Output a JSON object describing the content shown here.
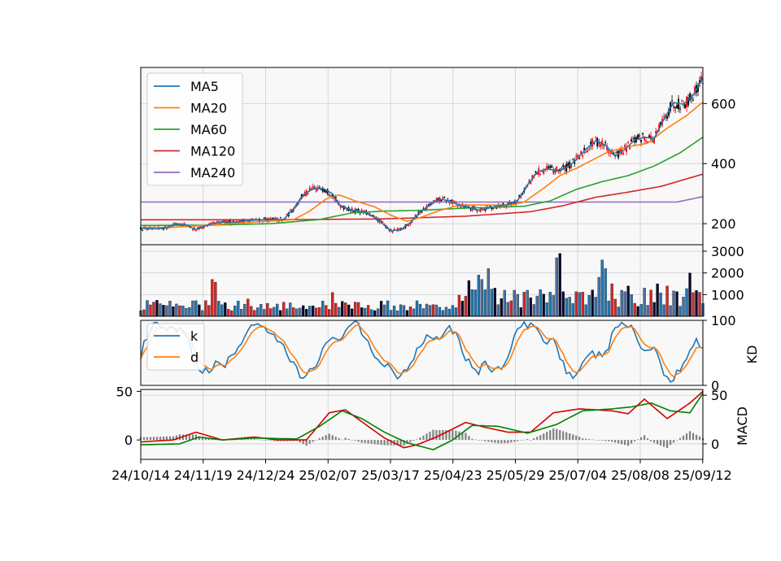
{
  "chart_data": [
    {
      "type": "line",
      "panel": "price",
      "x_dates": [
        "24/10/14",
        "24/11/19",
        "24/12/24",
        "25/02/07",
        "25/03/17",
        "25/04/23",
        "25/05/29",
        "25/07/04",
        "25/08/08",
        "25/09/12"
      ],
      "xlabel": "",
      "ylabel": "",
      "yticks": [
        200,
        400,
        600
      ],
      "ylim": [
        130,
        720
      ],
      "grid": true,
      "legend": "top-left",
      "series": [
        {
          "name": "MA5",
          "color": "#1f77b4",
          "points": [
            [
              0,
              185
            ],
            [
              10,
              183
            ],
            [
              16,
              188
            ],
            [
              22,
              200
            ],
            [
              28,
              196
            ],
            [
              34,
              180
            ],
            [
              40,
              194
            ],
            [
              46,
              202
            ],
            [
              52,
              206
            ],
            [
              58,
              205
            ],
            [
              64,
              210
            ],
            [
              70,
              212
            ],
            [
              76,
              213
            ],
            [
              82,
              214
            ],
            [
              88,
              214
            ],
            [
              94,
              250
            ],
            [
              100,
              296
            ],
            [
              106,
              316
            ],
            [
              112,
              318
            ],
            [
              118,
              300
            ],
            [
              122,
              262
            ],
            [
              130,
              245
            ],
            [
              138,
              238
            ],
            [
              146,
              214
            ],
            [
              154,
              176
            ],
            [
              160,
              180
            ],
            [
              166,
              204
            ],
            [
              172,
              240
            ],
            [
              178,
              262
            ],
            [
              184,
              282
            ],
            [
              190,
              276
            ],
            [
              196,
              262
            ],
            [
              202,
              254
            ],
            [
              208,
              245
            ],
            [
              214,
              252
            ],
            [
              220,
              260
            ],
            [
              226,
              264
            ],
            [
              232,
              278
            ],
            [
              238,
              328
            ],
            [
              244,
              372
            ],
            [
              250,
              382
            ],
            [
              256,
              378
            ],
            [
              262,
              386
            ],
            [
              268,
              412
            ],
            [
              274,
              448
            ],
            [
              280,
              476
            ],
            [
              286,
              462
            ],
            [
              292,
              424
            ],
            [
              298,
              448
            ],
            [
              304,
              478
            ],
            [
              310,
              488
            ],
            [
              316,
              483
            ],
            [
              322,
              548
            ],
            [
              328,
              603
            ],
            [
              334,
              598
            ],
            [
              340,
              628
            ],
            [
              346,
              685
            ]
          ]
        },
        {
          "name": "MA20",
          "color": "#ff7f0e",
          "points": [
            [
              0,
              186
            ],
            [
              20,
              188
            ],
            [
              40,
              195
            ],
            [
              60,
              202
            ],
            [
              80,
              209
            ],
            [
              94,
              213
            ],
            [
              104,
              242
            ],
            [
              114,
              282
            ],
            [
              122,
              296
            ],
            [
              132,
              276
            ],
            [
              144,
              256
            ],
            [
              154,
              228
            ],
            [
              164,
              208
            ],
            [
              174,
              224
            ],
            [
              184,
              244
            ],
            [
              196,
              262
            ],
            [
              212,
              262
            ],
            [
              228,
              262
            ],
            [
              236,
              272
            ],
            [
              248,
              318
            ],
            [
              258,
              360
            ],
            [
              268,
              384
            ],
            [
              278,
              412
            ],
            [
              288,
              440
            ],
            [
              300,
              456
            ],
            [
              312,
              468
            ],
            [
              324,
              518
            ],
            [
              336,
              560
            ],
            [
              346,
              605
            ]
          ]
        },
        {
          "name": "MA60",
          "color": "#2ca02c",
          "points": [
            [
              0,
              194
            ],
            [
              40,
              195
            ],
            [
              80,
              200
            ],
            [
              110,
              214
            ],
            [
              130,
              236
            ],
            [
              150,
              242
            ],
            [
              170,
              244
            ],
            [
              200,
              252
            ],
            [
              220,
              255
            ],
            [
              236,
              258
            ],
            [
              252,
              276
            ],
            [
              268,
              314
            ],
            [
              284,
              340
            ],
            [
              300,
              360
            ],
            [
              316,
              392
            ],
            [
              332,
              436
            ],
            [
              346,
              488
            ]
          ]
        },
        {
          "name": "MA120",
          "color": "#d62728",
          "points": [
            [
              0,
              213
            ],
            [
              80,
              213
            ],
            [
              150,
              216
            ],
            [
              200,
              225
            ],
            [
              240,
              240
            ],
            [
              260,
              260
            ],
            [
              280,
              288
            ],
            [
              300,
              305
            ],
            [
              320,
              324
            ],
            [
              346,
              365
            ]
          ]
        },
        {
          "name": "MA240",
          "color": "#9467bd",
          "points": [
            [
              0,
              272
            ],
            [
              330,
              272
            ],
            [
              346,
              290
            ]
          ]
        }
      ]
    },
    {
      "type": "bar",
      "panel": "volume",
      "yticks": [
        1000,
        2000,
        3000
      ],
      "ylim": [
        0,
        3300
      ],
      "grid": true
    },
    {
      "type": "line",
      "panel": "kd",
      "ylabel": "KD",
      "yticks": [
        0,
        100
      ],
      "ylim": [
        0,
        100
      ],
      "grid": true,
      "legend": "top-left",
      "series": [
        {
          "name": "k",
          "color": "#1f77b4"
        },
        {
          "name": "d",
          "color": "#ff7f0e"
        }
      ]
    },
    {
      "type": "line",
      "panel": "macd",
      "ylabel": "MACD",
      "left_ytick_labels": [
        "50",
        "0"
      ],
      "right_ytick_labels": [
        "50",
        "0"
      ],
      "ylim": [
        -20,
        52
      ],
      "grid": true,
      "series": [
        {
          "color": "#d40000",
          "points": [
            [
              0,
              -2
            ],
            [
              20,
              0
            ],
            [
              34,
              8
            ],
            [
              50,
              0
            ],
            [
              70,
              3
            ],
            [
              84,
              0
            ],
            [
              102,
              0
            ],
            [
              116,
              28
            ],
            [
              126,
              31
            ],
            [
              140,
              14
            ],
            [
              150,
              2
            ],
            [
              162,
              -8
            ],
            [
              170,
              -5
            ],
            [
              182,
              3
            ],
            [
              200,
              18
            ],
            [
              212,
              13
            ],
            [
              226,
              8
            ],
            [
              240,
              8
            ],
            [
              254,
              28
            ],
            [
              270,
              32
            ],
            [
              290,
              30
            ],
            [
              300,
              27
            ],
            [
              310,
              42
            ],
            [
              324,
              22
            ],
            [
              338,
              38
            ],
            [
              346,
              50
            ]
          ]
        },
        {
          "color": "#008000",
          "points": [
            [
              0,
              -5
            ],
            [
              24,
              -4
            ],
            [
              36,
              3
            ],
            [
              50,
              0
            ],
            [
              70,
              2
            ],
            [
              96,
              1
            ],
            [
              110,
              14
            ],
            [
              124,
              30
            ],
            [
              136,
              22
            ],
            [
              150,
              8
            ],
            [
              164,
              -3
            ],
            [
              180,
              -10
            ],
            [
              192,
              0
            ],
            [
              204,
              15
            ],
            [
              220,
              14
            ],
            [
              238,
              7
            ],
            [
              256,
              16
            ],
            [
              272,
              30
            ],
            [
              290,
              32
            ],
            [
              302,
              34
            ],
            [
              314,
              38
            ],
            [
              326,
              30
            ],
            [
              338,
              28
            ],
            [
              346,
              48
            ]
          ]
        }
      ]
    }
  ]
}
